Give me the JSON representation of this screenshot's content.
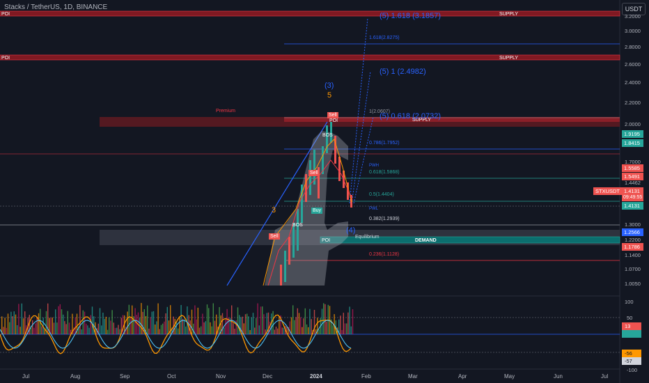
{
  "header": {
    "symbol_title": "Stacks / TetherUS, 1D, BINANCE",
    "currency_button": "USDT"
  },
  "price_axis": {
    "ticks": [
      "3.2000",
      "3.0000",
      "2.8000",
      "2.6000",
      "2.4000",
      "2.2000",
      "2.0000",
      "1.7000",
      "1.4462",
      "1.3000",
      "1.2200",
      "1.1400",
      "1.0700",
      "1.0050"
    ],
    "badges": [
      {
        "text": "1.9195",
        "color": "#26a69a"
      },
      {
        "text": "1.8415",
        "color": "#26a69a"
      },
      {
        "text": "1.5585",
        "color": "#ef5350"
      },
      {
        "text": "1.5491",
        "color": "#ef5350"
      },
      {
        "text": "1.4131",
        "color": "#ef5350"
      },
      {
        "text": "1.4131",
        "color": "#26a69a"
      },
      {
        "text": "1.2566",
        "color": "#2962ff"
      },
      {
        "text": "1.1786",
        "color": "#ef5350"
      }
    ],
    "symbol_badge": "STXUSDT",
    "countdown": "09:49:55"
  },
  "zones": {
    "poi_label": "POI",
    "supply_label": "SUPPLY",
    "demand_label": "DEMAND",
    "premium_label": "Premium",
    "equilibrium_label": "Equilibrium"
  },
  "fib": {
    "f1618": "1.618(2.8275)",
    "f1": "1(2.0607)",
    "f0786": "0.786(1.7952)",
    "f0618": "0.618(1.5868)",
    "f05": "0.5(1.4404)",
    "f0382": "0.382(1.2939)",
    "f0236": "0.236(1.1128)"
  },
  "targets": {
    "t1618": "(5) 1.618 (3.1857)",
    "t1": "(5) 1 (2.4982)",
    "t0618": "(5) 0.618 (2.0732)"
  },
  "elliott": {
    "w3_blue": "(3)",
    "w5_orange": "5",
    "w3_orange": "3",
    "w4_blue": "(4)"
  },
  "signals": {
    "sell1": "Sell",
    "sell2": "Sell",
    "buy": "Buy",
    "sell3": "Sell",
    "bos": "BOS",
    "pwh": "PWH",
    "pwl": "PWL",
    "poi_small": "POI"
  },
  "oscillator": {
    "ticks": [
      "100",
      "50",
      "0",
      "-50",
      "-100"
    ],
    "badge_13": "13",
    "badge_m56": "-56",
    "badge_m57": "-57"
  },
  "time_axis": [
    "Jul",
    "Aug",
    "Sep",
    "Oct",
    "Nov",
    "Dec",
    "2024",
    "Feb",
    "Mar",
    "Apr",
    "May",
    "Jun",
    "Jul"
  ]
}
